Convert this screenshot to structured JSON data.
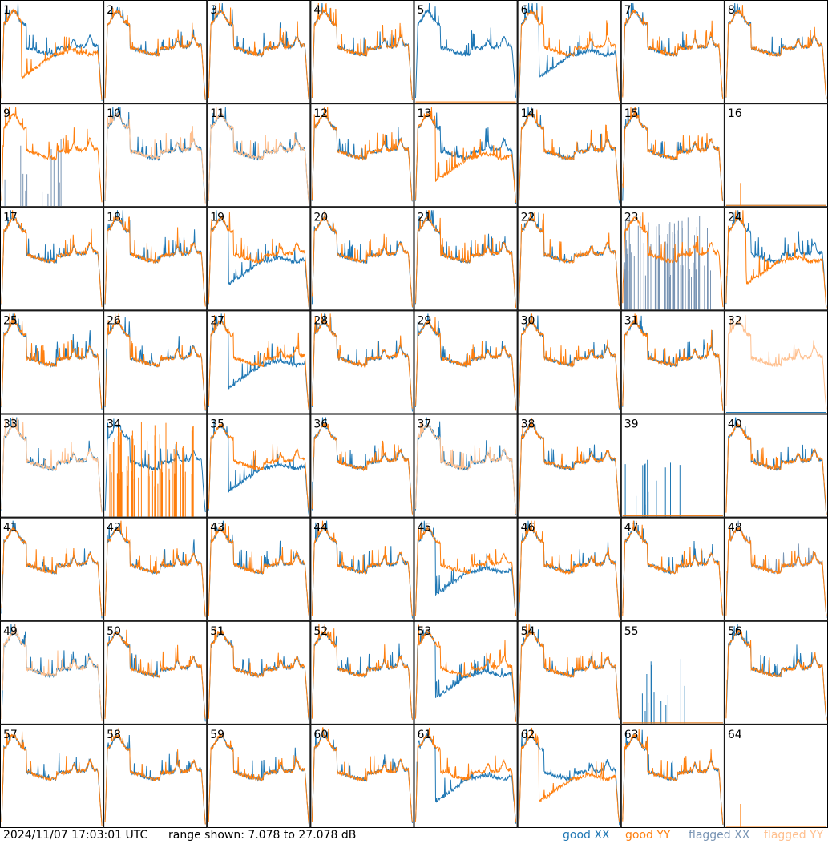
{
  "chart_data": {
    "type": "line",
    "layout": "8x8 small multiples",
    "panel_labels": [
      "1",
      "2",
      "3",
      "4",
      "5",
      "6",
      "7",
      "8",
      "9",
      "10",
      "11",
      "12",
      "13",
      "14",
      "15",
      "16",
      "17",
      "18",
      "19",
      "20",
      "21",
      "22",
      "23",
      "24",
      "25",
      "26",
      "27",
      "28",
      "29",
      "30",
      "31",
      "32",
      "33",
      "34",
      "35",
      "36",
      "37",
      "38",
      "39",
      "40",
      "41",
      "42",
      "43",
      "44",
      "45",
      "46",
      "47",
      "48",
      "49",
      "50",
      "51",
      "52",
      "53",
      "54",
      "55",
      "56",
      "57",
      "58",
      "59",
      "60",
      "61",
      "62",
      "63",
      "64"
    ],
    "ylim": [
      7.078,
      27.078
    ],
    "series_legend": [
      {
        "label": "good XX",
        "color": "#1f77b4"
      },
      {
        "label": "good YY",
        "color": "#ff7f0e"
      },
      {
        "label": "flagged XX",
        "color": "#7a95b4"
      },
      {
        "label": "flagged YY",
        "color": "#ffc08f"
      }
    ],
    "panel_states": {
      "xx_flagged": [
        9,
        23,
        48
      ],
      "yy_flagged": [
        10,
        11,
        32,
        33,
        37,
        49
      ],
      "xx_dead": [
        16,
        32,
        39,
        55,
        64
      ],
      "yy_dead": [
        5,
        16,
        39,
        55,
        64
      ],
      "yy_spiky": [
        34
      ],
      "xx_low": [
        6,
        19,
        27,
        35,
        45,
        53,
        61
      ],
      "yy_low": [
        1,
        13,
        24,
        62
      ]
    }
  },
  "footer": {
    "timestamp": "2024/11/07 17:03:01 UTC",
    "range": "range shown: 7.078 to 27.078 dB",
    "legend_good_xx": "good XX",
    "legend_good_yy": "good YY",
    "legend_flagged_xx": "flagged XX",
    "legend_flagged_yy": "flagged YY"
  }
}
